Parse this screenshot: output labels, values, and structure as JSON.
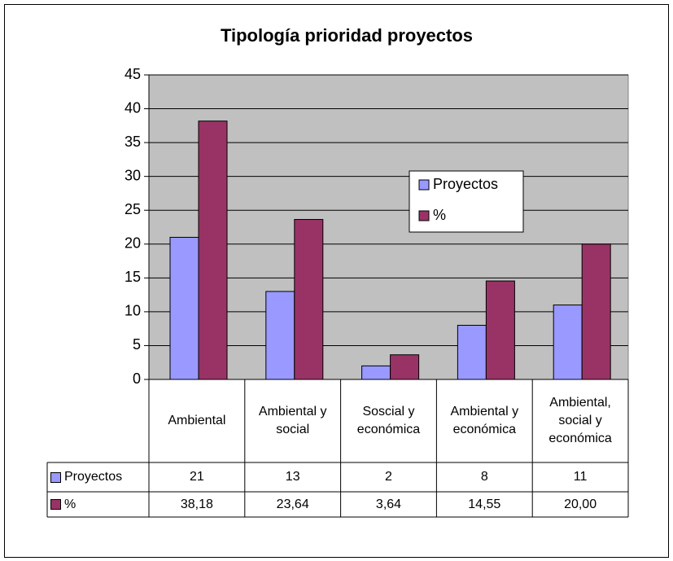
{
  "chart_data": {
    "type": "bar",
    "title": "Tipología prioridad proyectos",
    "categories": [
      "Ambiental",
      "Ambiental y social",
      "Soscial y económica",
      "Ambiental y económica",
      "Ambiental, social y económica"
    ],
    "series": [
      {
        "name": "Proyectos",
        "color": "#9999ff",
        "values": [
          21,
          13,
          2,
          8,
          11
        ]
      },
      {
        "name": "%",
        "color": "#993366",
        "values": [
          38.18,
          23.64,
          3.64,
          14.55,
          20.0
        ],
        "value_labels": [
          "38,18",
          "23,64",
          "3,64",
          "14,55",
          "20,00"
        ]
      }
    ],
    "ylim": [
      0,
      45
    ],
    "yticks": [
      0,
      5,
      10,
      15,
      20,
      25,
      30,
      35,
      40,
      45
    ],
    "grid": true,
    "legend": "right",
    "plot_background": "#c0c0c0"
  }
}
